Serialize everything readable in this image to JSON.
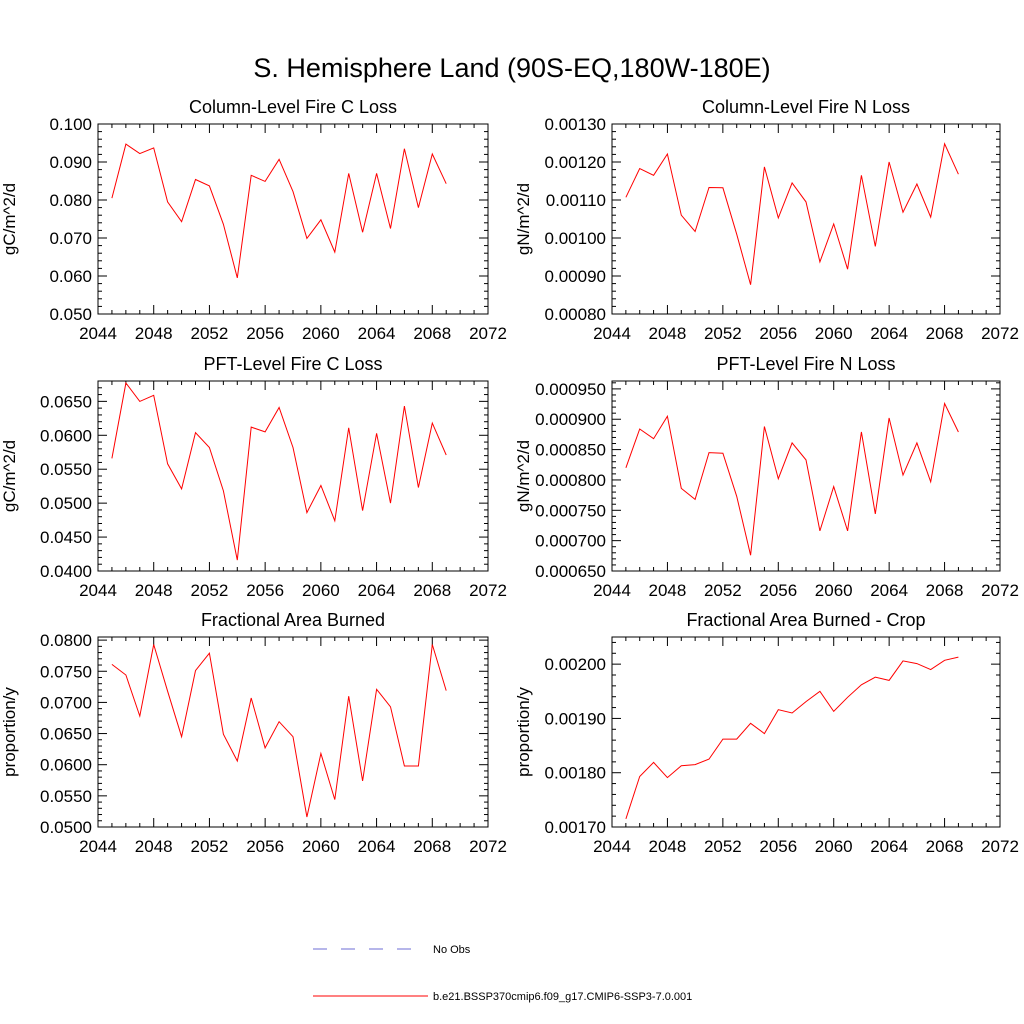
{
  "figure": {
    "title": "S. Hemisphere Land (90S-EQ,180W-180E)"
  },
  "colors": {
    "model_series": "#ff0000",
    "obs_series": "#6d6dd6"
  },
  "legend": {
    "entries": [
      {
        "label": "No Obs",
        "style": "dashed",
        "color": "#6d6dd6"
      },
      {
        "label": "b.e21.BSSP370cmip6.f09_g17.CMIP6-SSP3-7.0.001",
        "style": "solid",
        "color": "#ff0000"
      }
    ]
  },
  "chart_data": [
    {
      "type": "line",
      "title": "Column-Level Fire C Loss",
      "ylabel": "gC/m^2/d",
      "xlabel": "",
      "xlim": [
        2044,
        2072
      ],
      "ylim": [
        0.05,
        0.1
      ],
      "xticks": [
        2044,
        2048,
        2052,
        2056,
        2060,
        2064,
        2068,
        2072
      ],
      "xtick_labels": [
        "2044",
        "2048",
        "2052",
        "2056",
        "2060",
        "2064",
        "2068",
        "2072"
      ],
      "yticks": [
        0.05,
        0.06,
        0.07,
        0.08,
        0.09,
        0.1
      ],
      "ytick_labels": [
        "0.050",
        "0.060",
        "0.070",
        "0.080",
        "0.090",
        "0.100"
      ],
      "grid": false,
      "series": [
        {
          "name": "b.e21.BSSP370cmip6.f09_g17.CMIP6-SSP3-7.0.001",
          "x": [
            2045,
            2046,
            2047,
            2048,
            2049,
            2050,
            2051,
            2052,
            2053,
            2054,
            2055,
            2056,
            2057,
            2058,
            2059,
            2060,
            2061,
            2062,
            2063,
            2064,
            2065,
            2066,
            2067,
            2068,
            2069
          ],
          "y": [
            0.0805,
            0.0947,
            0.0922,
            0.0937,
            0.0795,
            0.0743,
            0.0854,
            0.0837,
            0.0736,
            0.0595,
            0.0865,
            0.0849,
            0.0907,
            0.0822,
            0.0699,
            0.0748,
            0.0663,
            0.087,
            0.0715,
            0.087,
            0.0725,
            0.0935,
            0.078,
            0.0921,
            0.0843
          ]
        }
      ]
    },
    {
      "type": "line",
      "title": "Column-Level Fire N Loss",
      "ylabel": "gN/m^2/d",
      "xlabel": "",
      "xlim": [
        2044,
        2072
      ],
      "ylim": [
        0.0008,
        0.0013
      ],
      "xticks": [
        2044,
        2048,
        2052,
        2056,
        2060,
        2064,
        2068,
        2072
      ],
      "xtick_labels": [
        "2044",
        "2048",
        "2052",
        "2056",
        "2060",
        "2064",
        "2068",
        "2072"
      ],
      "yticks": [
        0.0008,
        0.0009,
        0.001,
        0.0011,
        0.0012,
        0.0013
      ],
      "ytick_labels": [
        "0.00080",
        "0.00090",
        "0.00100",
        "0.00110",
        "0.00120",
        "0.00130"
      ],
      "grid": false,
      "series": [
        {
          "name": "b.e21.BSSP370cmip6.f09_g17.CMIP6-SSP3-7.0.001",
          "x": [
            2045,
            2046,
            2047,
            2048,
            2049,
            2050,
            2051,
            2052,
            2053,
            2054,
            2055,
            2056,
            2057,
            2058,
            2059,
            2060,
            2061,
            2062,
            2063,
            2064,
            2065,
            2066,
            2067,
            2068,
            2069
          ],
          "y": [
            0.001107,
            0.001183,
            0.001165,
            0.001221,
            0.00106,
            0.001017,
            0.001133,
            0.001132,
            0.00101,
            0.000877,
            0.001187,
            0.001053,
            0.001145,
            0.001095,
            0.000937,
            0.001037,
            0.000918,
            0.001165,
            0.000978,
            0.0012,
            0.001068,
            0.001142,
            0.001055,
            0.001248,
            0.001168
          ]
        }
      ]
    },
    {
      "type": "line",
      "title": "PFT-Level Fire C Loss",
      "ylabel": "gC/m^2/d",
      "xlabel": "",
      "xlim": [
        2044,
        2072
      ],
      "ylim": [
        0.04,
        0.068
      ],
      "xticks": [
        2044,
        2048,
        2052,
        2056,
        2060,
        2064,
        2068,
        2072
      ],
      "xtick_labels": [
        "2044",
        "2048",
        "2052",
        "2056",
        "2060",
        "2064",
        "2068",
        "2072"
      ],
      "yticks": [
        0.04,
        0.045,
        0.05,
        0.055,
        0.06,
        0.065
      ],
      "ytick_labels": [
        "0.0400",
        "0.0450",
        "0.0500",
        "0.0550",
        "0.0600",
        "0.0650"
      ],
      "grid": false,
      "series": [
        {
          "name": "b.e21.BSSP370cmip6.f09_g17.CMIP6-SSP3-7.0.001",
          "x": [
            2045,
            2046,
            2047,
            2048,
            2049,
            2050,
            2051,
            2052,
            2053,
            2054,
            2055,
            2056,
            2057,
            2058,
            2059,
            2060,
            2061,
            2062,
            2063,
            2064,
            2065,
            2066,
            2067,
            2068,
            2069
          ],
          "y": [
            0.0566,
            0.0677,
            0.065,
            0.0659,
            0.0558,
            0.0521,
            0.0604,
            0.0582,
            0.0518,
            0.0416,
            0.0612,
            0.0605,
            0.0641,
            0.0582,
            0.0486,
            0.0526,
            0.0474,
            0.0611,
            0.0489,
            0.0603,
            0.05,
            0.0643,
            0.0523,
            0.0618,
            0.0571
          ]
        }
      ]
    },
    {
      "type": "line",
      "title": "PFT-Level Fire N Loss",
      "ylabel": "gN/m^2/d",
      "xlabel": "",
      "xlim": [
        2044,
        2072
      ],
      "ylim": [
        0.00065,
        0.000963
      ],
      "xticks": [
        2044,
        2048,
        2052,
        2056,
        2060,
        2064,
        2068,
        2072
      ],
      "xtick_labels": [
        "2044",
        "2048",
        "2052",
        "2056",
        "2060",
        "2064",
        "2068",
        "2072"
      ],
      "yticks": [
        0.00065,
        0.0007,
        0.00075,
        0.0008,
        0.00085,
        0.0009,
        0.00095
      ],
      "ytick_labels": [
        "0.000650",
        "0.000700",
        "0.000750",
        "0.000800",
        "0.000850",
        "0.000900",
        "0.000950"
      ],
      "grid": false,
      "series": [
        {
          "name": "b.e21.BSSP370cmip6.f09_g17.CMIP6-SSP3-7.0.001",
          "x": [
            2045,
            2046,
            2047,
            2048,
            2049,
            2050,
            2051,
            2052,
            2053,
            2054,
            2055,
            2056,
            2057,
            2058,
            2059,
            2060,
            2061,
            2062,
            2063,
            2064,
            2065,
            2066,
            2067,
            2068,
            2069
          ],
          "y": [
            0.00082,
            0.000884,
            0.000868,
            0.000905,
            0.000786,
            0.000768,
            0.000845,
            0.000844,
            0.000773,
            0.000676,
            0.000888,
            0.000802,
            0.000861,
            0.000833,
            0.000716,
            0.000789,
            0.000716,
            0.000879,
            0.000744,
            0.000902,
            0.000808,
            0.000861,
            0.000797,
            0.000926,
            0.000879
          ]
        }
      ]
    },
    {
      "type": "line",
      "title": "Fractional Area Burned",
      "ylabel": "proportion/y",
      "xlabel": "",
      "xlim": [
        2044,
        2072
      ],
      "ylim": [
        0.05,
        0.0805
      ],
      "xticks": [
        2044,
        2048,
        2052,
        2056,
        2060,
        2064,
        2068,
        2072
      ],
      "xtick_labels": [
        "2044",
        "2048",
        "2052",
        "2056",
        "2060",
        "2064",
        "2068",
        "2072"
      ],
      "yticks": [
        0.05,
        0.055,
        0.06,
        0.065,
        0.07,
        0.075,
        0.08
      ],
      "ytick_labels": [
        "0.0500",
        "0.0550",
        "0.0600",
        "0.0650",
        "0.0700",
        "0.0750",
        "0.0800"
      ],
      "grid": false,
      "series": [
        {
          "name": "b.e21.BSSP370cmip6.f09_g17.CMIP6-SSP3-7.0.001",
          "x": [
            2045,
            2046,
            2047,
            2048,
            2049,
            2050,
            2051,
            2052,
            2053,
            2054,
            2055,
            2056,
            2057,
            2058,
            2059,
            2060,
            2061,
            2062,
            2063,
            2064,
            2065,
            2066,
            2067,
            2068,
            2069
          ],
          "y": [
            0.0761,
            0.0744,
            0.0678,
            0.0793,
            0.0718,
            0.0645,
            0.0751,
            0.0779,
            0.0649,
            0.0606,
            0.0707,
            0.0627,
            0.0669,
            0.0645,
            0.0516,
            0.0618,
            0.0544,
            0.071,
            0.0574,
            0.0721,
            0.0693,
            0.0598,
            0.0598,
            0.0793,
            0.0719
          ]
        }
      ]
    },
    {
      "type": "line",
      "title": "Fractional Area Burned - Crop",
      "ylabel": "proportion/y",
      "xlabel": "",
      "xlim": [
        2044,
        2072
      ],
      "ylim": [
        0.0017,
        0.00205
      ],
      "xticks": [
        2044,
        2048,
        2052,
        2056,
        2060,
        2064,
        2068,
        2072
      ],
      "xtick_labels": [
        "2044",
        "2048",
        "2052",
        "2056",
        "2060",
        "2064",
        "2068",
        "2072"
      ],
      "yticks": [
        0.0017,
        0.0018,
        0.0019,
        0.002
      ],
      "ytick_labels": [
        "0.00170",
        "0.00180",
        "0.00190",
        "0.00200"
      ],
      "grid": false,
      "series": [
        {
          "name": "b.e21.BSSP370cmip6.f09_g17.CMIP6-SSP3-7.0.001",
          "x": [
            2045,
            2046,
            2047,
            2048,
            2049,
            2050,
            2051,
            2052,
            2053,
            2054,
            2055,
            2056,
            2057,
            2058,
            2059,
            2060,
            2061,
            2062,
            2063,
            2064,
            2065,
            2066,
            2067,
            2068,
            2069
          ],
          "y": [
            0.001715,
            0.001793,
            0.001819,
            0.001791,
            0.001813,
            0.001815,
            0.001825,
            0.001862,
            0.001862,
            0.001891,
            0.001872,
            0.001916,
            0.00191,
            0.001931,
            0.00195,
            0.001913,
            0.001939,
            0.001962,
            0.001976,
            0.00197,
            0.002006,
            0.002001,
            0.00199,
            0.002007,
            0.002013
          ]
        }
      ]
    }
  ]
}
